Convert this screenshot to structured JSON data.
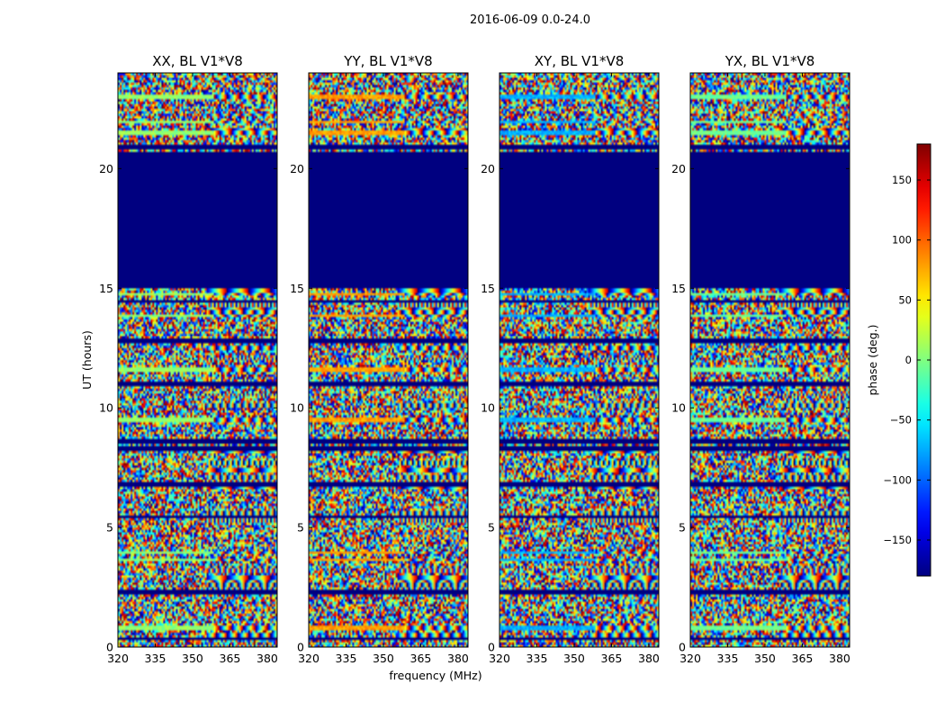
{
  "chart_data": {
    "type": "heatmap",
    "suptitle": "2016-06-09 0.0-24.0",
    "xlabel": "frequency (MHz)",
    "ylabel": "UT (hours)",
    "xlim": [
      320,
      384
    ],
    "ylim": [
      0,
      24
    ],
    "xticks": [
      320,
      335,
      350,
      365,
      380
    ],
    "yticks": [
      0,
      5,
      10,
      15,
      20
    ],
    "colormap": "jet",
    "colorbar": {
      "label": "phase (deg.)",
      "range": [
        -180,
        180
      ],
      "ticks": [
        150,
        100,
        50,
        0,
        -50,
        -100,
        -150
      ],
      "tick_labels": [
        "150",
        "100",
        "50",
        "0",
        "−50",
        "−100",
        "−150"
      ]
    },
    "flagged_interval_hours": [
      15.0,
      20.7
    ],
    "panels": [
      {
        "title": "XX, BL V1*V8",
        "pol": "XX"
      },
      {
        "title": "YY, BL V1*V8",
        "pol": "YY"
      },
      {
        "title": "XY, BL V1*V8",
        "pol": "XY"
      },
      {
        "title": "YX, BL V1*V8",
        "pol": "YX"
      }
    ]
  }
}
